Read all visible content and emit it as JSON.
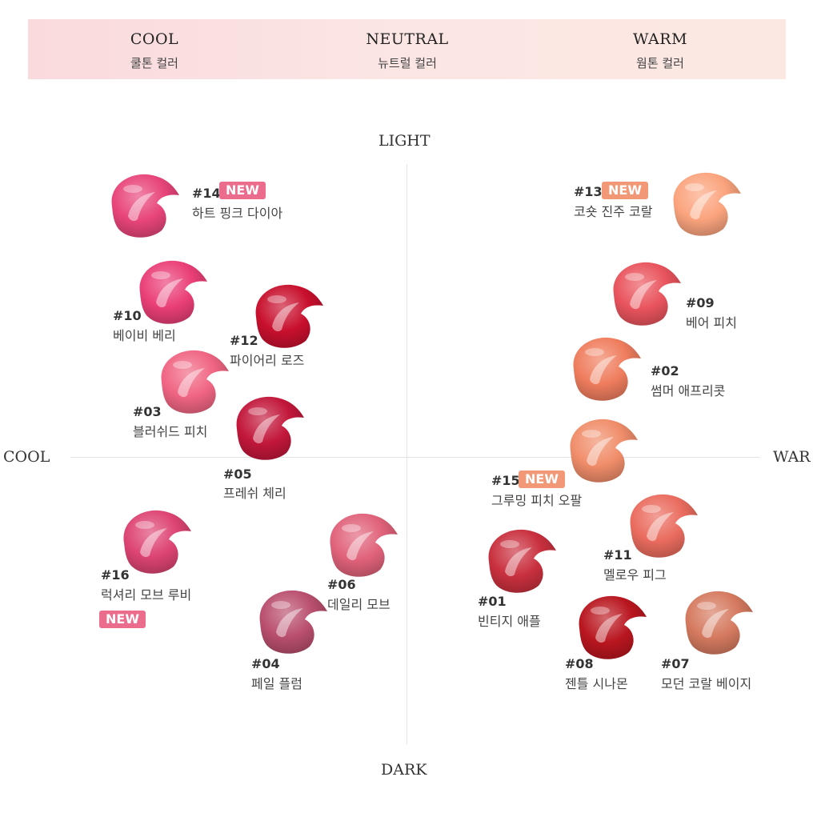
{
  "header": {
    "bands": [
      {
        "title": "COOL",
        "subtitle": "쿨톤 컬러"
      },
      {
        "title": "NEUTRAL",
        "subtitle": "뉴트럴 컬러"
      },
      {
        "title": "WARM",
        "subtitle": "웜톤 컬러"
      }
    ]
  },
  "axes": {
    "top": "LIGHT",
    "bottom": "DARK",
    "left": "COOL",
    "right": "WAR"
  },
  "badge_text": "NEW",
  "shades": [
    {
      "number": "#14",
      "name": "하트 핑크 다이아",
      "new": true,
      "color": "#e8457a"
    },
    {
      "number": "#10",
      "name": "베이비 베리",
      "new": false,
      "color": "#ea3f77"
    },
    {
      "number": "#12",
      "name": "파이어리 로즈",
      "new": false,
      "color": "#c8102e"
    },
    {
      "number": "#03",
      "name": "블러쉬드 피치",
      "new": false,
      "color": "#f06583"
    },
    {
      "number": "#05",
      "name": "프레쉬 체리",
      "new": false,
      "color": "#c2173a"
    },
    {
      "number": "#16",
      "name": "럭셔리 모브 루비",
      "new": true,
      "color": "#dd4473"
    },
    {
      "number": "#06",
      "name": "데일리 모브",
      "new": false,
      "color": "#e0627a"
    },
    {
      "number": "#04",
      "name": "페일 플럼",
      "new": false,
      "color": "#b94f6e"
    },
    {
      "number": "#13",
      "name": "코숏 진주 코랄",
      "new": true,
      "color": "#fba47e"
    },
    {
      "number": "#09",
      "name": "베어 피치",
      "new": false,
      "color": "#e9545d"
    },
    {
      "number": "#02",
      "name": "썸머 애프리콧",
      "new": false,
      "color": "#ef7d5e"
    },
    {
      "number": "#15",
      "name": "그루밍 피치 오팔",
      "new": true,
      "color": "#f08d6a"
    },
    {
      "number": "#11",
      "name": "멜로우 피그",
      "new": false,
      "color": "#ea6c5f"
    },
    {
      "number": "#01",
      "name": "빈티지 애플",
      "new": false,
      "color": "#c9303e"
    },
    {
      "number": "#08",
      "name": "젠틀 시나몬",
      "new": false,
      "color": "#b9161f"
    },
    {
      "number": "#07",
      "name": "모던 코랄 베이지",
      "new": false,
      "color": "#d57a60"
    }
  ]
}
